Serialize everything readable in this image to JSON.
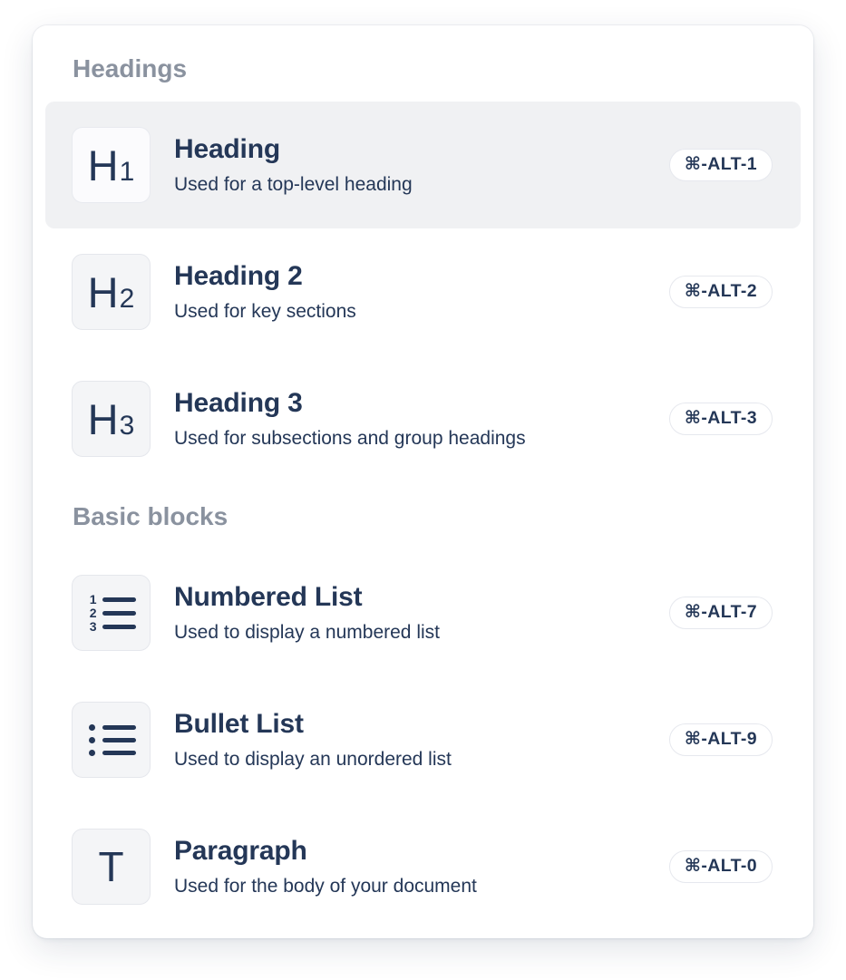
{
  "panel": {
    "colors": {
      "text_navy": "#243757",
      "section_label_gray": "#8A929F",
      "selected_row_bg": "#F0F1F3",
      "icon_box_bg": "#F4F5F7",
      "icon_box_border": "#E5E7EC",
      "badge_border": "#E6E8EE",
      "card_bg": "#FFFFFF"
    },
    "sections": [
      {
        "label": "Headings",
        "items": [
          {
            "icon": "heading-1-icon",
            "icon_letter": "H",
            "icon_digit": "1",
            "title": "Heading",
            "description": "Used for a top-level heading",
            "shortcut": "⌘-ALT-1",
            "selected": true
          },
          {
            "icon": "heading-2-icon",
            "icon_letter": "H",
            "icon_digit": "2",
            "title": "Heading 2",
            "description": "Used for key sections",
            "shortcut": "⌘-ALT-2",
            "selected": false
          },
          {
            "icon": "heading-3-icon",
            "icon_letter": "H",
            "icon_digit": "3",
            "title": "Heading 3",
            "description": "Used for subsections and group headings",
            "shortcut": "⌘-ALT-3",
            "selected": false
          }
        ]
      },
      {
        "label": "Basic blocks",
        "items": [
          {
            "icon": "numbered-list-icon",
            "icon_digits": [
              "1",
              "2",
              "3"
            ],
            "title": "Numbered List",
            "description": "Used to display a numbered list",
            "shortcut": "⌘-ALT-7",
            "selected": false
          },
          {
            "icon": "bullet-list-icon",
            "title": "Bullet List",
            "description": "Used to display an unordered list",
            "shortcut": "⌘-ALT-9",
            "selected": false
          },
          {
            "icon": "paragraph-icon",
            "icon_letter": "T",
            "title": "Paragraph",
            "description": "Used for the body of your document",
            "shortcut": "⌘-ALT-0",
            "selected": false
          }
        ]
      }
    ]
  }
}
